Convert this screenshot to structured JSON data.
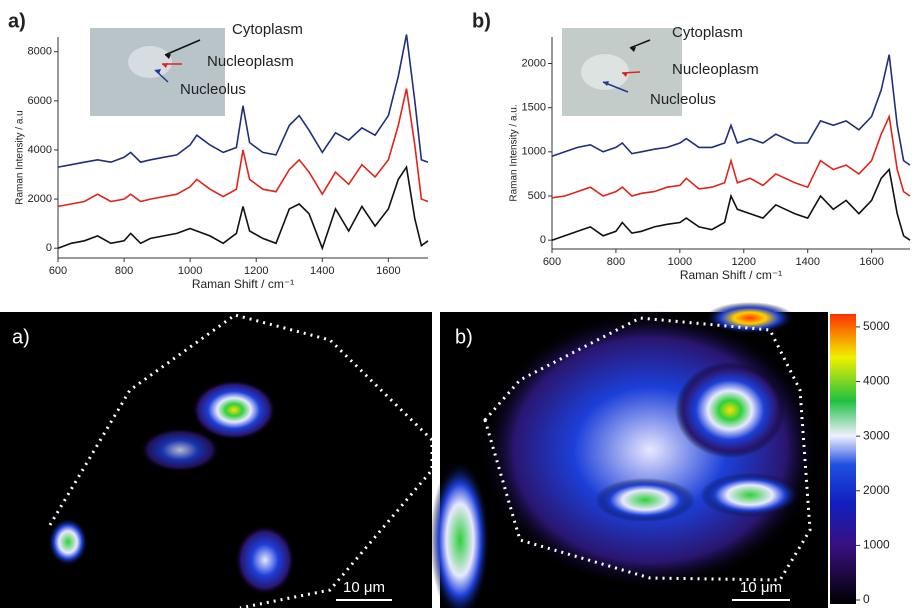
{
  "chart_data": [
    {
      "type": "line",
      "panel_label": "a)",
      "xlabel": "Raman Shift / cm⁻¹",
      "ylabel": "Raman Intensity / a.u",
      "annotations": [
        {
          "text": "Cytoplasm",
          "color": "#111111"
        },
        {
          "text": "Nucleoplasm",
          "color": "#e0241b"
        },
        {
          "text": "Nucleolus",
          "color": "#1f3a8f"
        }
      ],
      "xlim": [
        600,
        1720
      ],
      "ylim": [
        -400,
        8600
      ],
      "xticks": [
        600,
        800,
        1000,
        1200,
        1400,
        1600
      ],
      "yticks": [
        0,
        2000,
        4000,
        6000,
        8000
      ],
      "x": [
        600,
        640,
        680,
        720,
        760,
        800,
        820,
        850,
        880,
        920,
        960,
        1000,
        1020,
        1060,
        1100,
        1140,
        1160,
        1180,
        1220,
        1260,
        1300,
        1330,
        1360,
        1400,
        1440,
        1480,
        1520,
        1560,
        1600,
        1630,
        1655,
        1680,
        1700,
        1720
      ],
      "series": [
        {
          "name": "Nucleolus",
          "color": "#1f2f7a",
          "values": [
            3300,
            3400,
            3500,
            3600,
            3500,
            3700,
            3900,
            3500,
            3600,
            3700,
            3800,
            4200,
            4600,
            4200,
            3900,
            4100,
            5800,
            4300,
            3900,
            3800,
            5000,
            5400,
            4800,
            3900,
            4700,
            4400,
            4900,
            4600,
            5400,
            7000,
            8700,
            6000,
            3600,
            3500
          ]
        },
        {
          "name": "Nucleoplasm",
          "color": "#e0241b",
          "values": [
            1700,
            1800,
            1900,
            2200,
            1900,
            2000,
            2200,
            1900,
            2000,
            2100,
            2200,
            2500,
            2800,
            2400,
            2100,
            2400,
            4000,
            2800,
            2400,
            2300,
            3200,
            3600,
            3100,
            2200,
            3100,
            2600,
            3400,
            2900,
            3600,
            5000,
            6500,
            4200,
            2000,
            1900
          ]
        },
        {
          "name": "Cytoplasm",
          "color": "#111111",
          "values": [
            0,
            200,
            300,
            500,
            200,
            300,
            600,
            200,
            400,
            500,
            600,
            800,
            700,
            500,
            200,
            600,
            1700,
            700,
            400,
            200,
            1600,
            1800,
            1400,
            0,
            1600,
            700,
            1700,
            900,
            1600,
            2800,
            3300,
            1200,
            100,
            300
          ]
        }
      ]
    },
    {
      "type": "line",
      "panel_label": "b)",
      "xlabel": "Raman Shift / cm⁻¹",
      "ylabel": "Raman Intensity / a.u.",
      "annotations": [
        {
          "text": "Cytoplasm",
          "color": "#111111"
        },
        {
          "text": "Nucleoplasm",
          "color": "#e0241b"
        },
        {
          "text": "Nucleolus",
          "color": "#1f3a8f"
        }
      ],
      "xlim": [
        600,
        1720
      ],
      "ylim": [
        -100,
        2300
      ],
      "xticks": [
        600,
        800,
        1000,
        1200,
        1400,
        1600
      ],
      "yticks": [
        0,
        500,
        1000,
        1500,
        2000
      ],
      "x": [
        600,
        640,
        680,
        720,
        760,
        800,
        820,
        850,
        880,
        920,
        960,
        1000,
        1020,
        1060,
        1100,
        1140,
        1160,
        1180,
        1220,
        1260,
        1300,
        1330,
        1360,
        1400,
        1440,
        1480,
        1520,
        1560,
        1600,
        1630,
        1655,
        1680,
        1700,
        1720
      ],
      "series": [
        {
          "name": "Nucleolus",
          "color": "#1f2f7a",
          "values": [
            950,
            1000,
            1050,
            1080,
            1000,
            1050,
            1100,
            980,
            1000,
            1030,
            1050,
            1100,
            1150,
            1050,
            1050,
            1100,
            1300,
            1100,
            1150,
            1100,
            1200,
            1150,
            1100,
            1100,
            1350,
            1300,
            1350,
            1250,
            1400,
            1700,
            2100,
            1300,
            900,
            850
          ]
        },
        {
          "name": "Nucleoplasm",
          "color": "#e0241b",
          "values": [
            480,
            500,
            550,
            600,
            500,
            550,
            600,
            500,
            530,
            550,
            600,
            620,
            700,
            580,
            600,
            650,
            900,
            650,
            700,
            620,
            750,
            700,
            650,
            600,
            900,
            800,
            850,
            750,
            900,
            1200,
            1400,
            800,
            550,
            500
          ]
        },
        {
          "name": "Cytoplasm",
          "color": "#111111",
          "values": [
            0,
            50,
            100,
            150,
            50,
            100,
            200,
            80,
            100,
            150,
            180,
            200,
            250,
            150,
            120,
            200,
            500,
            350,
            300,
            250,
            400,
            350,
            300,
            250,
            500,
            350,
            450,
            300,
            450,
            700,
            800,
            300,
            50,
            0
          ]
        }
      ]
    }
  ],
  "maps": {
    "panels": [
      {
        "label": "a)",
        "scale_bar": "10 μm"
      },
      {
        "label": "b)",
        "scale_bar": "10 μm"
      }
    ],
    "colorbar": {
      "lim": [
        0,
        5200
      ],
      "ticks": [
        0,
        1000,
        2000,
        3000,
        4000,
        5000
      ]
    }
  }
}
